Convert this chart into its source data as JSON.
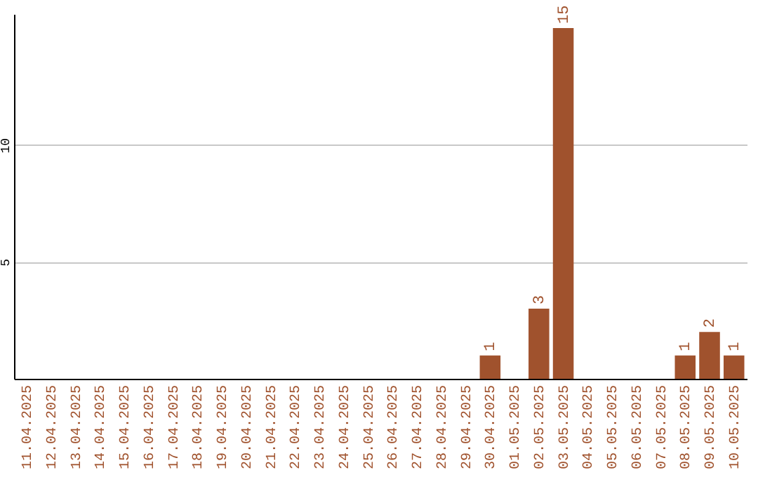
{
  "chart_data": {
    "type": "bar",
    "categories": [
      "11.04.2025",
      "12.04.2025",
      "13.04.2025",
      "14.04.2025",
      "15.04.2025",
      "16.04.2025",
      "17.04.2025",
      "18.04.2025",
      "19.04.2025",
      "20.04.2025",
      "21.04.2025",
      "22.04.2025",
      "23.04.2025",
      "24.04.2025",
      "25.04.2025",
      "26.04.2025",
      "27.04.2025",
      "28.04.2025",
      "29.04.2025",
      "30.04.2025",
      "01.05.2025",
      "02.05.2025",
      "03.05.2025",
      "04.05.2025",
      "05.05.2025",
      "06.05.2025",
      "07.05.2025",
      "08.05.2025",
      "09.05.2025",
      "10.05.2025"
    ],
    "values": [
      0,
      0,
      0,
      0,
      0,
      0,
      0,
      0,
      0,
      0,
      0,
      0,
      0,
      0,
      0,
      0,
      0,
      0,
      0,
      1,
      0,
      3,
      15,
      0,
      0,
      0,
      0,
      1,
      2,
      1
    ],
    "value_labels": [
      null,
      null,
      null,
      null,
      null,
      null,
      null,
      null,
      null,
      null,
      null,
      null,
      null,
      null,
      null,
      null,
      null,
      null,
      null,
      "1",
      null,
      "3",
      "15",
      null,
      null,
      null,
      null,
      "1",
      "2",
      "1"
    ],
    "color": "#a0522d",
    "ylim": [
      0,
      15.6
    ],
    "yticks": [
      5,
      10
    ],
    "grid": "y"
  }
}
